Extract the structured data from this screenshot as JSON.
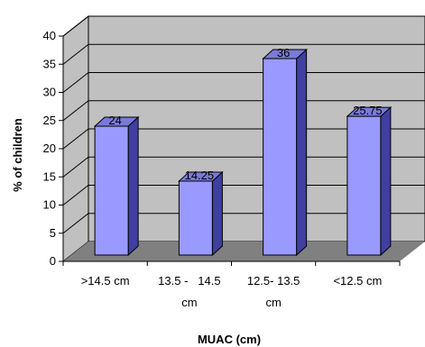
{
  "chart_data": {
    "type": "bar",
    "categories": [
      ">14.5 cm",
      "13.5 - 14.5 cm",
      "12.5- 13.5 cm",
      "<12.5 cm"
    ],
    "category_lines": [
      [
        ">14.5 cm"
      ],
      [
        "13.5 -   14.5",
        "cm"
      ],
      [
        "12.5- 13.5",
        "cm"
      ],
      [
        "<12.5 cm"
      ]
    ],
    "values": [
      24,
      14.25,
      36,
      25.75
    ],
    "data_labels": [
      "24",
      "14.25",
      "36",
      "25.75"
    ],
    "xlabel": "MUAC (cm)",
    "ylabel": "% of children",
    "ylim": [
      0,
      40
    ],
    "yticks": [
      0,
      5,
      10,
      15,
      20,
      25,
      30,
      35,
      40
    ],
    "grid": true,
    "style": "3d",
    "colors": {
      "bar_front": "#9999ff",
      "bar_side": "#3f3fa0",
      "bar_top": "#7a7ad8",
      "wall": "#c0c0c0",
      "floor": "#808080",
      "grid": "#000000"
    }
  }
}
